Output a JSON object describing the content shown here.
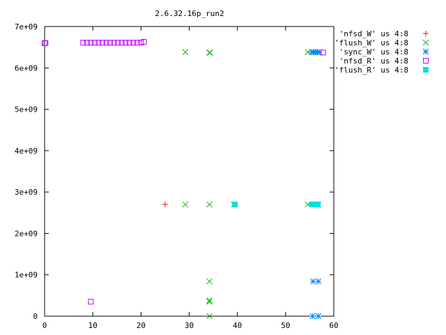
{
  "chart_data": {
    "type": "scatter",
    "title": "2.6.32.16p_run2",
    "xlabel": "",
    "ylabel": "",
    "xlim": [
      0,
      60
    ],
    "ylim": [
      0,
      7000000000
    ],
    "xticks": [
      0,
      10,
      20,
      30,
      40,
      50,
      60
    ],
    "xtick_labels": [
      "0",
      "10",
      "20",
      "30",
      "40",
      "50",
      "60"
    ],
    "yticks": [
      0,
      1000000000,
      2000000000,
      3000000000,
      4000000000,
      5000000000,
      6000000000,
      7000000000
    ],
    "ytick_labels": [
      "0",
      "1e+09",
      "2e+09",
      "3e+09",
      "4e+09",
      "5e+09",
      "6e+09",
      "7e+09"
    ],
    "grid": false,
    "legend_position": "top-right, outside plot",
    "series": [
      {
        "name": "'nfsd_W' us 4:8",
        "marker": "plus",
        "color": "#ff0000",
        "points": [
          [
            25.0,
            2700000000
          ]
        ]
      },
      {
        "name": "'flush_W' us 4:8",
        "marker": "cross",
        "color": "#00c000",
        "points": [
          [
            29.2,
            6380000000
          ],
          [
            34.2,
            6370000000
          ],
          [
            34.3,
            6370000000
          ],
          [
            29.2,
            2700000000
          ],
          [
            34.2,
            2700000000
          ],
          [
            39.3,
            2700000000
          ],
          [
            54.6,
            2700000000
          ],
          [
            54.6,
            6380000000
          ],
          [
            34.2,
            840000000
          ],
          [
            34.2,
            380000000
          ],
          [
            34.2,
            350000000
          ],
          [
            34.2,
            0
          ]
        ]
      },
      {
        "name": "'sync_W' us 4:8",
        "marker": "star",
        "color": "#0080ff",
        "points": [
          [
            55.4,
            6380000000
          ],
          [
            55.8,
            6380000000
          ],
          [
            56.2,
            6380000000
          ],
          [
            56.6,
            6380000000
          ],
          [
            57.0,
            6380000000
          ],
          [
            55.6,
            2700000000
          ],
          [
            56.0,
            2700000000
          ],
          [
            56.4,
            2700000000
          ],
          [
            56.8,
            2700000000
          ],
          [
            55.7,
            840000000
          ],
          [
            56.8,
            840000000
          ],
          [
            55.6,
            0
          ],
          [
            56.8,
            0
          ]
        ]
      },
      {
        "name": "'nfsd_R' us 4:8",
        "marker": "box",
        "color": "#c000ff",
        "points": [
          [
            0.0,
            6600000000
          ],
          [
            0.2,
            6600000000
          ],
          [
            8.0,
            6610000000
          ],
          [
            8.8,
            6610000000
          ],
          [
            9.6,
            6610000000
          ],
          [
            10.4,
            6610000000
          ],
          [
            11.2,
            6610000000
          ],
          [
            12.0,
            6610000000
          ],
          [
            12.8,
            6610000000
          ],
          [
            13.6,
            6610000000
          ],
          [
            14.4,
            6610000000
          ],
          [
            15.2,
            6610000000
          ],
          [
            16.0,
            6610000000
          ],
          [
            16.8,
            6610000000
          ],
          [
            17.6,
            6610000000
          ],
          [
            18.4,
            6610000000
          ],
          [
            19.2,
            6610000000
          ],
          [
            20.0,
            6610000000
          ],
          [
            20.6,
            6630000000
          ],
          [
            57.8,
            6370000000
          ],
          [
            9.6,
            350000000
          ]
        ]
      },
      {
        "name": "'flush_R' us 4:8",
        "marker": "filled-box",
        "color": "#00e0e0",
        "points": [
          [
            39.5,
            2700000000
          ],
          [
            55.4,
            2700000000
          ],
          [
            55.8,
            2700000000
          ],
          [
            56.2,
            2700000000
          ],
          [
            56.6,
            2700000000
          ]
        ]
      }
    ]
  }
}
